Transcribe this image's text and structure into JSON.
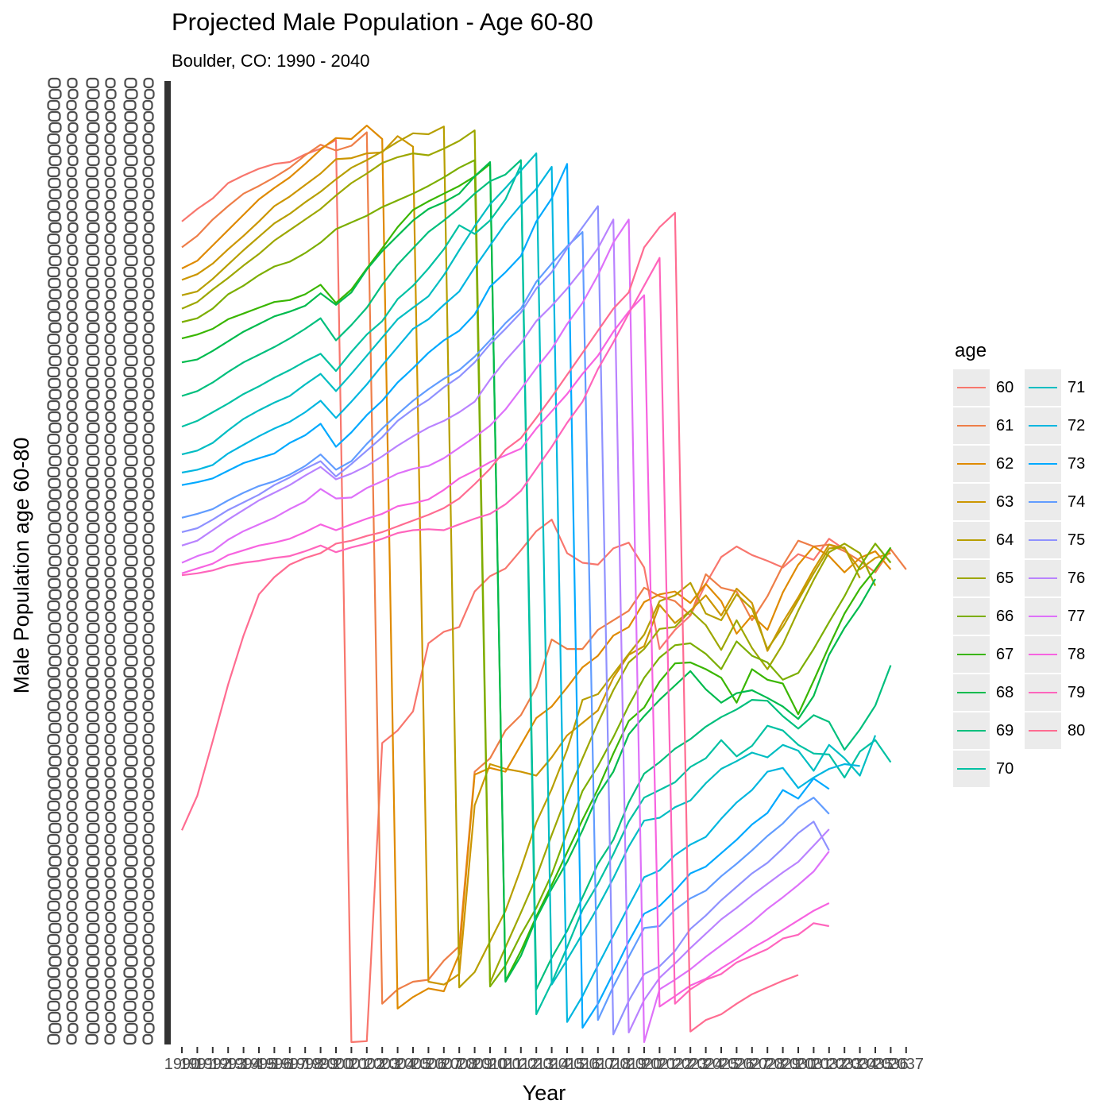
{
  "chart_data": {
    "type": "line",
    "title": "Projected Male Population - Age 60-80",
    "subtitle": "Boulder, CO: 1990 - 2040",
    "xlabel": "Year",
    "ylabel": "Male Population age 60-80",
    "legend_title": "age",
    "legend_position": "right",
    "grid": false,
    "background": "white",
    "x_is_categorical_per_series": true,
    "x_categories": [
      "1990",
      "1991",
      "1992",
      "1993",
      "1994",
      "1995",
      "1996",
      "1997",
      "1998",
      "1999",
      "2000",
      "2001",
      "2002",
      "2003",
      "2004",
      "2005",
      "2006",
      "2007",
      "2008",
      "2009",
      "2010",
      "2011",
      "2012",
      "2013",
      "2014",
      "2015",
      "2016",
      "2017",
      "2018",
      "2019",
      "2020",
      "2021",
      "2022",
      "2023",
      "2024",
      "2025",
      "2026",
      "2027",
      "2028",
      "2029",
      "2030",
      "2031",
      "2032",
      "2033",
      "2034",
      "2035",
      "2036",
      "2037"
    ],
    "ylim": [
      0,
      1
    ],
    "y_note": "y tick labels overlap and are unreadable; values are relative heights (0 = bottom, 1 = top)",
    "series": [
      {
        "name": "60",
        "color": "#F8766D",
        "values": [
          0.856,
          0.869,
          0.88,
          0.896,
          0.904,
          0.911,
          0.916,
          0.918,
          0.926,
          0.932,
          0.941,
          0.0,
          0.001,
          0.312,
          0.325,
          0.345,
          0.416,
          0.428,
          0.433,
          0.47,
          0.486,
          0.494,
          0.513,
          0.533,
          0.545,
          0.51,
          0.5,
          0.498,
          0.515,
          0.521,
          0.495,
          0.41,
          0.43,
          0.445,
          0.478,
          0.506,
          0.517,
          0.508,
          0.502,
          0.495,
          0.509,
          0.503,
          0.525,
          0.514
        ]
      },
      {
        "name": "61",
        "color": "#EE7E48",
        "values": [
          0.829,
          0.841,
          0.858,
          0.872,
          0.885,
          0.893,
          0.902,
          0.912,
          0.925,
          0.936,
          0.93,
          0.935,
          0.949,
          0.04,
          0.055,
          0.063,
          0.065,
          0.085,
          0.1,
          0.282,
          0.296,
          0.325,
          0.341,
          0.37,
          0.42,
          0.41,
          0.41,
          0.43,
          0.44,
          0.45,
          0.474,
          0.465,
          0.46,
          0.445,
          0.488,
          0.474,
          0.47,
          0.44,
          0.465,
          0.497,
          0.523,
          0.517,
          0.519,
          0.512,
          0.502,
          0.49,
          0.514,
          0.493
        ]
      },
      {
        "name": "62",
        "color": "#DF8A00",
        "values": [
          0.807,
          0.815,
          0.831,
          0.847,
          0.863,
          0.879,
          0.891,
          0.902,
          0.916,
          0.931,
          0.943,
          0.942,
          0.956,
          0.942,
          0.035,
          0.047,
          0.056,
          0.053,
          0.092,
          0.279,
          0.286,
          0.282,
          0.31,
          0.338,
          0.35,
          0.37,
          0.391,
          0.403,
          0.424,
          0.433,
          0.459,
          0.467,
          0.47,
          0.458,
          0.478,
          0.46,
          0.426,
          0.445,
          0.43,
          0.469,
          0.498,
          0.517,
          0.507,
          0.49,
          0.505,
          0.512,
          0.493
        ]
      },
      {
        "name": "63",
        "color": "#CC9600",
        "values": [
          0.795,
          0.801,
          0.812,
          0.827,
          0.841,
          0.856,
          0.872,
          0.882,
          0.894,
          0.906,
          0.921,
          0.922,
          0.927,
          0.928,
          0.945,
          0.934,
          0.063,
          0.06,
          0.071,
          0.247,
          0.29,
          0.285,
          0.282,
          0.278,
          0.297,
          0.32,
          0.333,
          0.346,
          0.38,
          0.404,
          0.413,
          0.456,
          0.437,
          0.45,
          0.466,
          0.445,
          0.473,
          0.458,
          0.408,
          0.438,
          0.464,
          0.493,
          0.519,
          0.515,
          0.493,
          0.505,
          0.51
        ]
      },
      {
        "name": "64",
        "color": "#B79F00",
        "values": [
          0.779,
          0.783,
          0.796,
          0.811,
          0.826,
          0.84,
          0.854,
          0.864,
          0.876,
          0.887,
          0.9,
          0.912,
          0.92,
          0.929,
          0.939,
          0.948,
          0.947,
          0.955,
          0.057,
          0.073,
          0.105,
          0.137,
          0.181,
          0.229,
          0.264,
          0.305,
          0.357,
          0.363,
          0.384,
          0.405,
          0.425,
          0.46,
          0.466,
          0.479,
          0.447,
          0.44,
          0.467,
          0.452,
          0.41,
          0.433,
          0.461,
          0.489,
          0.515,
          0.516,
          0.484
        ]
      },
      {
        "name": "65",
        "color": "#9DA700",
        "values": [
          0.765,
          0.772,
          0.785,
          0.797,
          0.81,
          0.822,
          0.836,
          0.847,
          0.858,
          0.869,
          0.883,
          0.896,
          0.906,
          0.917,
          0.923,
          0.927,
          0.925,
          0.932,
          0.94,
          0.951,
          0.062,
          0.099,
          0.135,
          0.172,
          0.216,
          0.258,
          0.296,
          0.333,
          0.367,
          0.396,
          0.41,
          0.431,
          0.433,
          0.45,
          0.435,
          0.409,
          0.44,
          0.411,
          0.389,
          0.415,
          0.45,
          0.482,
          0.511,
          0.52,
          0.51,
          0.476
        ]
      },
      {
        "name": "66",
        "color": "#7CAE00",
        "values": [
          0.751,
          0.755,
          0.765,
          0.78,
          0.789,
          0.8,
          0.809,
          0.814,
          0.823,
          0.834,
          0.848,
          0.855,
          0.862,
          0.871,
          0.878,
          0.885,
          0.893,
          0.902,
          0.912,
          0.92,
          0.058,
          0.08,
          0.112,
          0.14,
          0.175,
          0.219,
          0.262,
          0.288,
          0.318,
          0.351,
          0.38,
          0.401,
          0.414,
          0.416,
          0.405,
          0.389,
          0.418,
          0.403,
          0.396,
          0.378,
          0.385,
          0.41,
          0.438,
          0.465,
          0.496,
          0.52,
          0.5
        ]
      },
      {
        "name": "67",
        "color": "#39B600",
        "values": [
          0.734,
          0.738,
          0.744,
          0.754,
          0.76,
          0.766,
          0.772,
          0.774,
          0.78,
          0.79,
          0.771,
          0.785,
          0.807,
          0.828,
          0.85,
          0.868,
          0.877,
          0.885,
          0.893,
          0.903,
          0.916,
          0.064,
          0.095,
          0.131,
          0.164,
          0.198,
          0.232,
          0.264,
          0.301,
          0.335,
          0.349,
          0.376,
          0.395,
          0.396,
          0.389,
          0.38,
          0.354,
          0.389,
          0.378,
          0.374,
          0.342,
          0.377,
          0.413,
          0.447,
          0.473,
          0.493,
          0.516
        ]
      },
      {
        "name": "68",
        "color": "#00BB4E",
        "values": [
          0.709,
          0.712,
          0.721,
          0.731,
          0.741,
          0.749,
          0.757,
          0.762,
          0.768,
          0.781,
          0.769,
          0.782,
          0.806,
          0.825,
          0.841,
          0.857,
          0.869,
          0.876,
          0.885,
          0.903,
          0.918,
          0.063,
          0.09,
          0.129,
          0.16,
          0.188,
          0.221,
          0.258,
          0.282,
          0.321,
          0.34,
          0.357,
          0.372,
          0.387,
          0.368,
          0.354,
          0.364,
          0.367,
          0.359,
          0.35,
          0.337,
          0.361,
          0.404,
          0.432,
          0.455,
          0.483
        ]
      },
      {
        "name": "69",
        "color": "#00BF7D",
        "values": [
          0.674,
          0.679,
          0.688,
          0.699,
          0.709,
          0.717,
          0.725,
          0.734,
          0.744,
          0.755,
          0.732,
          0.748,
          0.766,
          0.79,
          0.811,
          0.828,
          0.845,
          0.857,
          0.87,
          0.885,
          0.898,
          0.905,
          0.92,
          0.055,
          0.088,
          0.116,
          0.151,
          0.186,
          0.211,
          0.25,
          0.28,
          0.292,
          0.306,
          0.316,
          0.329,
          0.339,
          0.347,
          0.357,
          0.356,
          0.34,
          0.327,
          0.341,
          0.334,
          0.305,
          0.326,
          0.351,
          0.393
        ]
      },
      {
        "name": "70",
        "color": "#00C1A3",
        "values": [
          0.642,
          0.648,
          0.657,
          0.666,
          0.676,
          0.684,
          0.693,
          0.701,
          0.71,
          0.718,
          0.7,
          0.72,
          0.738,
          0.752,
          0.775,
          0.789,
          0.807,
          0.827,
          0.852,
          0.843,
          0.857,
          0.879,
          0.915,
          0.029,
          0.062,
          0.099,
          0.138,
          0.165,
          0.196,
          0.23,
          0.255,
          0.263,
          0.271,
          0.287,
          0.296,
          0.315,
          0.298,
          0.309,
          0.33,
          0.325,
          0.31,
          0.301,
          0.3,
          0.276,
          0.303,
          0.315,
          0.292
        ]
      },
      {
        "name": "71",
        "color": "#00BDC2",
        "values": [
          0.613,
          0.617,
          0.625,
          0.638,
          0.65,
          0.659,
          0.667,
          0.674,
          0.686,
          0.697,
          0.679,
          0.697,
          0.716,
          0.735,
          0.754,
          0.766,
          0.778,
          0.8,
          0.826,
          0.851,
          0.874,
          0.891,
          0.909,
          0.927,
          0.06,
          0.086,
          0.113,
          0.141,
          0.171,
          0.204,
          0.231,
          0.234,
          0.245,
          0.252,
          0.27,
          0.285,
          0.293,
          0.302,
          0.297,
          0.31,
          0.304,
          0.283,
          0.31,
          0.296,
          0.278,
          0.32
        ]
      },
      {
        "name": "72",
        "color": "#00B6E0",
        "values": [
          0.594,
          0.597,
          0.602,
          0.614,
          0.623,
          0.632,
          0.64,
          0.647,
          0.657,
          0.669,
          0.651,
          0.668,
          0.686,
          0.706,
          0.725,
          0.744,
          0.754,
          0.769,
          0.783,
          0.808,
          0.831,
          0.854,
          0.873,
          0.89,
          0.913,
          0.021,
          0.048,
          0.08,
          0.111,
          0.142,
          0.172,
          0.179,
          0.195,
          0.206,
          0.214,
          0.233,
          0.25,
          0.263,
          0.282,
          0.286,
          0.265,
          0.276,
          0.285,
          0.29,
          0.288
        ]
      },
      {
        "name": "73",
        "color": "#00A9FF",
        "values": [
          0.581,
          0.584,
          0.588,
          0.596,
          0.604,
          0.609,
          0.614,
          0.625,
          0.633,
          0.645,
          0.621,
          0.636,
          0.654,
          0.669,
          0.688,
          0.703,
          0.719,
          0.732,
          0.742,
          0.759,
          0.788,
          0.803,
          0.82,
          0.856,
          0.88,
          0.916,
          0.015,
          0.04,
          0.072,
          0.105,
          0.134,
          0.142,
          0.158,
          0.176,
          0.183,
          0.197,
          0.211,
          0.227,
          0.239,
          0.263,
          0.254,
          0.275,
          0.264
        ]
      },
      {
        "name": "74",
        "color": "#619CFF",
        "values": [
          0.547,
          0.551,
          0.556,
          0.565,
          0.573,
          0.58,
          0.585,
          0.592,
          0.601,
          0.613,
          0.597,
          0.606,
          0.624,
          0.64,
          0.655,
          0.669,
          0.681,
          0.692,
          0.701,
          0.715,
          0.732,
          0.75,
          0.765,
          0.793,
          0.812,
          0.83,
          0.845,
          0.023,
          0.058,
          0.089,
          0.119,
          0.121,
          0.138,
          0.15,
          0.158,
          0.173,
          0.186,
          0.2,
          0.215,
          0.228,
          0.245,
          0.255,
          0.238
        ]
      },
      {
        "name": "75",
        "color": "#8F91FF",
        "values": [
          0.532,
          0.536,
          0.545,
          0.555,
          0.563,
          0.571,
          0.581,
          0.589,
          0.598,
          0.606,
          0.59,
          0.603,
          0.617,
          0.631,
          0.648,
          0.66,
          0.67,
          0.683,
          0.694,
          0.709,
          0.728,
          0.744,
          0.761,
          0.786,
          0.803,
          0.828,
          0.85,
          0.872,
          0.008,
          0.043,
          0.071,
          0.079,
          0.095,
          0.118,
          0.132,
          0.148,
          0.162,
          0.176,
          0.187,
          0.202,
          0.218,
          0.23,
          0.2
        ]
      },
      {
        "name": "76",
        "color": "#B983FF",
        "values": [
          0.518,
          0.523,
          0.534,
          0.545,
          0.555,
          0.565,
          0.573,
          0.581,
          0.591,
          0.6,
          0.587,
          0.593,
          0.601,
          0.611,
          0.622,
          0.632,
          0.641,
          0.648,
          0.657,
          0.668,
          0.691,
          0.711,
          0.729,
          0.752,
          0.768,
          0.786,
          0.806,
          0.828,
          0.858,
          0.01,
          0.044,
          0.067,
          0.082,
          0.098,
          0.113,
          0.128,
          0.14,
          0.153,
          0.165,
          0.177,
          0.188,
          0.205,
          0.222
        ]
      },
      {
        "name": "77",
        "color": "#DE71F9",
        "values": [
          0.5,
          0.507,
          0.512,
          0.524,
          0.533,
          0.54,
          0.547,
          0.556,
          0.564,
          0.577,
          0.567,
          0.568,
          0.578,
          0.585,
          0.593,
          0.598,
          0.601,
          0.609,
          0.62,
          0.631,
          0.643,
          0.66,
          0.681,
          0.703,
          0.723,
          0.749,
          0.771,
          0.8,
          0.834,
          0.858,
          0.0,
          0.055,
          0.065,
          0.076,
          0.089,
          0.101,
          0.113,
          0.125,
          0.139,
          0.151,
          0.164,
          0.178,
          0.199
        ]
      },
      {
        "name": "78",
        "color": "#F763E0",
        "values": [
          0.489,
          0.494,
          0.499,
          0.508,
          0.513,
          0.518,
          0.521,
          0.525,
          0.532,
          0.54,
          0.534,
          0.54,
          0.546,
          0.551,
          0.559,
          0.562,
          0.566,
          0.576,
          0.588,
          0.596,
          0.605,
          0.612,
          0.619,
          0.64,
          0.658,
          0.676,
          0.697,
          0.716,
          0.741,
          0.762,
          0.779,
          0.037,
          0.048,
          0.059,
          0.066,
          0.077,
          0.087,
          0.098,
          0.107,
          0.117,
          0.127,
          0.137,
          0.145
        ]
      },
      {
        "name": "79",
        "color": "#FF65BC",
        "values": [
          0.487,
          0.489,
          0.492,
          0.497,
          0.5,
          0.502,
          0.505,
          0.507,
          0.512,
          0.518,
          0.511,
          0.516,
          0.52,
          0.525,
          0.531,
          0.534,
          0.535,
          0.534,
          0.54,
          0.546,
          0.551,
          0.561,
          0.575,
          0.598,
          0.621,
          0.646,
          0.668,
          0.702,
          0.73,
          0.76,
          0.789,
          0.818,
          0.04,
          0.055,
          0.065,
          0.071,
          0.083,
          0.09,
          0.097,
          0.108,
          0.112,
          0.124,
          0.121
        ]
      },
      {
        "name": "80",
        "color": "#FF6C91",
        "values": [
          0.221,
          0.257,
          0.314,
          0.373,
          0.424,
          0.467,
          0.485,
          0.498,
          0.505,
          0.51,
          0.52,
          0.523,
          0.528,
          0.532,
          0.538,
          0.544,
          0.55,
          0.557,
          0.567,
          0.582,
          0.598,
          0.618,
          0.63,
          0.651,
          0.673,
          0.696,
          0.719,
          0.742,
          0.765,
          0.782,
          0.829,
          0.85,
          0.865,
          0.011,
          0.023,
          0.029,
          0.04,
          0.05,
          0.057,
          0.064,
          0.07
        ]
      }
    ]
  }
}
